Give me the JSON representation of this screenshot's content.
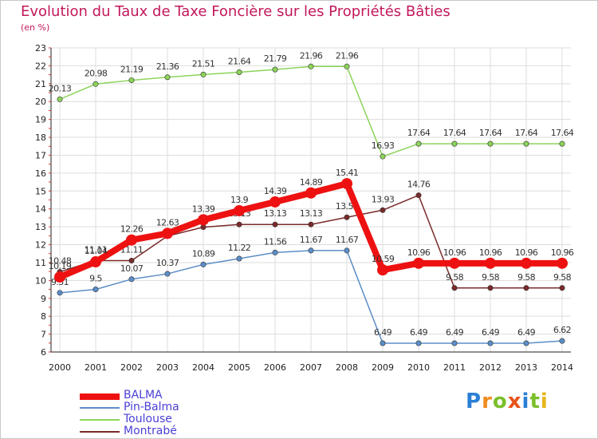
{
  "chart_data": {
    "type": "line",
    "title": "Evolution du Taux de Taxe Foncière sur les Propriétés Bâties",
    "subtitle": "(en %)",
    "xlabel": "",
    "ylabel": "",
    "ylim": [
      6,
      23
    ],
    "yticks": [
      "6",
      "7",
      "8",
      "9",
      "10",
      "11",
      "12",
      "13",
      "14",
      "15",
      "16",
      "17",
      "18",
      "19",
      "20",
      "21",
      "22",
      "23"
    ],
    "categories": [
      "2000",
      "2001",
      "2002",
      "2003",
      "2004",
      "2005",
      "2006",
      "2007",
      "2008",
      "2009",
      "2010",
      "2011",
      "2012",
      "2013",
      "2014"
    ],
    "series": [
      {
        "name": "Toulouse",
        "color": "#8cd45a",
        "values": [
          20.13,
          20.98,
          21.19,
          21.36,
          21.51,
          21.64,
          21.79,
          21.96,
          21.96,
          16.93,
          17.64,
          17.64,
          17.64,
          17.64,
          17.64
        ],
        "labels": [
          "20.13",
          "20.98",
          "21.19",
          "21.36",
          "21.51",
          "21.64",
          "21.79",
          "21.96",
          "21.96",
          "16.93",
          "17.64",
          "17.64",
          "17.64",
          "17.64",
          "17.64"
        ]
      },
      {
        "name": "Pin-Balma",
        "color": "#5b8ec8",
        "values": [
          9.31,
          9.5,
          10.07,
          10.37,
          10.89,
          11.22,
          11.56,
          11.67,
          11.67,
          6.49,
          6.49,
          6.49,
          6.49,
          6.49,
          6.62
        ],
        "labels": [
          "9.31",
          "9.5",
          "10.07",
          "10.37",
          "10.89",
          "11.22",
          "11.56",
          "11.67",
          "11.67",
          "6.49",
          "6.49",
          "6.49",
          "6.49",
          "6.49",
          "6.62"
        ]
      },
      {
        "name": "Montrabé",
        "color": "#7a2a2a",
        "values": [
          10.48,
          11.11,
          11.11,
          12.48,
          12.98,
          13.13,
          13.13,
          13.13,
          13.53,
          13.93,
          14.76,
          9.58,
          9.58,
          9.58,
          9.58
        ],
        "labels": [
          "10.48",
          "11.11",
          "11.11",
          "",
          "",
          "13.13",
          "13.13",
          "13.13",
          "13.53",
          "13.93",
          "14.76",
          "9.58",
          "9.58",
          "9.58",
          "9.58"
        ]
      },
      {
        "name": "BALMA",
        "color": "#ee1111",
        "values": [
          10.19,
          11.04,
          12.26,
          12.63,
          13.39,
          13.9,
          14.39,
          14.89,
          15.41,
          10.59,
          10.96,
          10.96,
          10.96,
          10.96,
          10.96
        ],
        "labels": [
          "10.19",
          "11.04",
          "12.26",
          "12.63",
          "13.39",
          "13.9",
          "14.39",
          "14.89",
          "15.41",
          "10.59",
          "10.96",
          "10.96",
          "10.96",
          "10.96",
          "10.96"
        ]
      }
    ],
    "legend": [
      "BALMA",
      "Pin-Balma",
      "Toulouse",
      "Montrabé"
    ]
  },
  "logo": {
    "parts": [
      "P",
      "r",
      "o",
      "x",
      "i",
      "t",
      "i"
    ]
  }
}
